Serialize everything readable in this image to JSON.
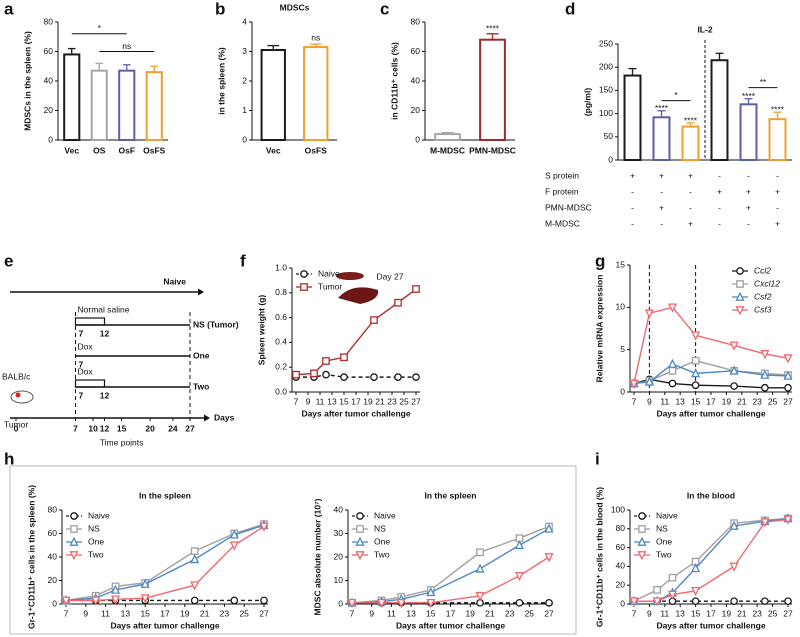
{
  "chart_data": [
    {
      "panel": "a",
      "type": "bar",
      "ylabel": "MDSCs in the spleen (%)",
      "categories": [
        "Vec",
        "OS",
        "OsF",
        "OsFS"
      ],
      "values": [
        58,
        47,
        47,
        46
      ],
      "errors": [
        4,
        5,
        4,
        4
      ],
      "colors": [
        "#1a1a1a",
        "#a6a6a6",
        "#5a5fa8",
        "#f0a030"
      ],
      "ylim": [
        0,
        80
      ],
      "yticks": [
        0,
        20,
        40,
        60,
        80
      ],
      "annotations": [
        "*",
        "ns"
      ]
    },
    {
      "panel": "b",
      "type": "bar",
      "title": "MDSCs",
      "ylabel": "in the spleen (%)",
      "categories": [
        "Vec",
        "OsFS"
      ],
      "values": [
        3.05,
        3.15
      ],
      "errors": [
        0.15,
        0.1
      ],
      "colors": [
        "#1a1a1a",
        "#f0a030"
      ],
      "ylim": [
        0,
        4
      ],
      "yticks": [
        0,
        1,
        2,
        3,
        4
      ],
      "annotations": [
        "ns"
      ]
    },
    {
      "panel": "c",
      "type": "bar",
      "ylabel": "in CD11b⁺ cells (%)",
      "categories": [
        "M-MDSC",
        "PMN-MDSC"
      ],
      "values": [
        4,
        68
      ],
      "errors": [
        1,
        4
      ],
      "colors": [
        "#a6a6a6",
        "#a02828"
      ],
      "ylim": [
        0,
        80
      ],
      "yticks": [
        0,
        20,
        40,
        60,
        80
      ],
      "annotations": [
        "****"
      ]
    },
    {
      "panel": "d",
      "type": "bar",
      "title": "IL-2",
      "ylabel": "(pg/ml)",
      "values": [
        182,
        92,
        72,
        215,
        120,
        88
      ],
      "errors": [
        15,
        14,
        8,
        15,
        12,
        15
      ],
      "colors": [
        "#1a1a1a",
        "#5a5fa8",
        "#f0a030",
        "#1a1a1a",
        "#5a5fa8",
        "#f0a030"
      ],
      "ylim": [
        0,
        250
      ],
      "yticks": [
        0,
        50,
        100,
        150,
        200,
        250
      ],
      "annotations": [
        "****",
        "****",
        "*",
        "****",
        "****",
        "**"
      ],
      "table": [
        {
          "label": "S protein",
          "cells": [
            "+",
            "+",
            "+",
            "-",
            "-",
            "-"
          ]
        },
        {
          "label": "F protein",
          "cells": [
            "-",
            "-",
            "-",
            "+",
            "+",
            "+"
          ]
        },
        {
          "label": "PMN-MDSC",
          "cells": [
            "-",
            "+",
            "-",
            "-",
            "+",
            "-"
          ]
        },
        {
          "label": "M-MDSC",
          "cells": [
            "-",
            "-",
            "+",
            "-",
            "-",
            "+"
          ]
        }
      ]
    },
    {
      "panel": "f",
      "type": "line",
      "xlabel": "Days after tumor challenge",
      "ylabel": "Spleen weight (g)",
      "x": [
        7,
        10,
        12,
        15,
        20,
        24,
        27
      ],
      "xlim": [
        7,
        27
      ],
      "xticks": [
        7,
        9,
        11,
        13,
        15,
        17,
        19,
        21,
        23,
        25,
        27
      ],
      "ylim": [
        0,
        1
      ],
      "yticks": [
        {
          "value": 0,
          "label": "0.0"
        },
        0.2,
        0.4,
        0.6,
        0.8,
        {
          "value": 1,
          "label": "1.0"
        }
      ],
      "legend": "upper left",
      "annotations": [
        "Day 27"
      ],
      "series": [
        {
          "name": "Naive",
          "color": "#1a1a1a",
          "marker": "circle",
          "dash": true,
          "values": [
            0.12,
            0.12,
            0.14,
            0.12,
            0.12,
            0.12,
            0.12
          ]
        },
        {
          "name": "Tumor",
          "color": "#b02a2a",
          "marker": "square",
          "values": [
            0.14,
            0.15,
            0.25,
            0.28,
            0.58,
            0.72,
            0.83
          ]
        }
      ]
    },
    {
      "panel": "g",
      "type": "line",
      "xlabel": "Days after tumor challenge",
      "ylabel": "Relative mRNA expression",
      "x": [
        7,
        9,
        12,
        15,
        20,
        24,
        27
      ],
      "xlim": [
        7,
        27
      ],
      "xticks": [
        7,
        9,
        11,
        13,
        15,
        17,
        19,
        21,
        23,
        25,
        27
      ],
      "ylim": [
        0,
        15
      ],
      "yticks": [
        0,
        5,
        10,
        15
      ],
      "vlines": [
        9,
        15
      ],
      "legend": "upper right",
      "legend_style": "italic",
      "series": [
        {
          "name": "Ccl2",
          "color": "#1a1a1a",
          "marker": "circle",
          "values": [
            1,
            1.5,
            1.0,
            0.8,
            0.7,
            0.5,
            0.5
          ]
        },
        {
          "name": "Cxcl12",
          "color": "#a0a0a0",
          "marker": "square",
          "values": [
            1,
            1.3,
            2.5,
            3.7,
            2.5,
            2.2,
            2.0
          ]
        },
        {
          "name": "Csf2",
          "color": "#4f88c6",
          "marker": "triangle",
          "values": [
            1,
            1.2,
            3.3,
            2.2,
            2.5,
            2.0,
            1.9
          ]
        },
        {
          "name": "Csf3",
          "color": "#f0686e",
          "marker": "triangle-down",
          "values": [
            1,
            9.3,
            10,
            6.7,
            5.5,
            4.5,
            4.0
          ]
        }
      ]
    },
    {
      "panel": "h",
      "type": "line",
      "title": "In the spleen",
      "xlabel": "Days after tumor challenge",
      "ylabel": "Gr-1⁺CD11b⁺ cells in the spleen (%)",
      "x": [
        7,
        10,
        12,
        15,
        20,
        24,
        27
      ],
      "xlim": [
        7,
        27
      ],
      "xticks": [
        7,
        9,
        11,
        13,
        15,
        17,
        19,
        21,
        23,
        25,
        27
      ],
      "ylim": [
        0,
        80
      ],
      "yticks": [
        0,
        20,
        40,
        60,
        80
      ],
      "legend": "upper left",
      "series": [
        {
          "name": "Naive",
          "color": "#1a1a1a",
          "marker": "circle",
          "dash": true,
          "values": [
            3,
            3,
            3,
            3,
            3,
            3,
            3
          ]
        },
        {
          "name": "NS",
          "color": "#a0a0a0",
          "marker": "square",
          "values": [
            3,
            7,
            15,
            18,
            45,
            60,
            68
          ]
        },
        {
          "name": "One",
          "color": "#4f88c6",
          "marker": "triangle",
          "values": [
            3,
            5,
            12,
            17,
            38,
            59,
            67
          ]
        },
        {
          "name": "Two",
          "color": "#f0686e",
          "marker": "triangle-down",
          "values": [
            3,
            3,
            4,
            5,
            16,
            50,
            66
          ]
        }
      ]
    },
    {
      "type": "line",
      "title": "In the spleen",
      "xlabel": "Days after tumor challenge",
      "ylabel": "MDSC absolute number (10⁷)",
      "x": [
        7,
        10,
        12,
        15,
        20,
        24,
        27
      ],
      "xlim": [
        7,
        27
      ],
      "xticks": [
        7,
        9,
        11,
        13,
        15,
        17,
        19,
        21,
        23,
        25,
        27
      ],
      "ylim": [
        0,
        40
      ],
      "yticks": [
        0,
        10,
        20,
        30,
        40
      ],
      "legend": "upper left",
      "series": [
        {
          "name": "Naive",
          "color": "#1a1a1a",
          "marker": "circle",
          "dash": true,
          "values": [
            0.5,
            0.5,
            0.5,
            0.5,
            0.5,
            0.5,
            0.5
          ]
        },
        {
          "name": "NS",
          "color": "#a0a0a0",
          "marker": "square",
          "values": [
            0.5,
            1.5,
            3,
            6,
            22,
            28,
            33
          ]
        },
        {
          "name": "One",
          "color": "#4f88c6",
          "marker": "triangle",
          "values": [
            0.5,
            1,
            2,
            5,
            15,
            25,
            32
          ]
        },
        {
          "name": "Two",
          "color": "#f0686e",
          "marker": "triangle-down",
          "values": [
            0.5,
            0.5,
            0.5,
            0.5,
            3.5,
            12,
            20
          ]
        }
      ]
    },
    {
      "panel": "i",
      "type": "line",
      "title": "In the blood",
      "xlabel": "Days after tumor challenge",
      "ylabel": "Gr-1⁺CD11b⁺ cells in the blood (%)",
      "x": [
        7,
        10,
        12,
        15,
        20,
        24,
        27
      ],
      "xlim": [
        7,
        27
      ],
      "xticks": [
        7,
        9,
        11,
        13,
        15,
        17,
        19,
        21,
        23,
        25,
        27
      ],
      "ylim": [
        0,
        100
      ],
      "yticks": [
        0,
        20,
        40,
        60,
        80,
        100
      ],
      "legend": "upper left",
      "series": [
        {
          "name": "Naive",
          "color": "#1a1a1a",
          "marker": "circle",
          "dash": true,
          "values": [
            3,
            3,
            3,
            3,
            3,
            3,
            3
          ]
        },
        {
          "name": "NS",
          "color": "#a0a0a0",
          "marker": "square",
          "values": [
            3,
            15,
            28,
            45,
            86,
            89,
            91
          ]
        },
        {
          "name": "One",
          "color": "#4f88c6",
          "marker": "triangle",
          "values": [
            3,
            3,
            12,
            38,
            83,
            88,
            91
          ]
        },
        {
          "name": "Two",
          "color": "#f0686e",
          "marker": "triangle-down",
          "values": [
            3,
            3,
            10,
            14,
            40,
            87,
            90
          ]
        }
      ]
    }
  ],
  "timeline": {
    "panel": "e",
    "rows": [
      {
        "label": "Naive"
      },
      {
        "label": "NS (Tumor)",
        "treatment": "Normal saline",
        "start": 7,
        "end": 12
      },
      {
        "label": "One",
        "treatment": "Dox",
        "start": 7
      },
      {
        "label": "Two",
        "treatment": "Dox",
        "start": 7,
        "end": 12
      }
    ],
    "mouse_label": "BALB/c",
    "tumor_label": "Tumor",
    "axis_ticks": [
      0,
      7,
      10,
      12,
      15,
      20,
      24,
      27
    ],
    "xlabel": "Time points",
    "axis_end_label": "Days"
  }
}
